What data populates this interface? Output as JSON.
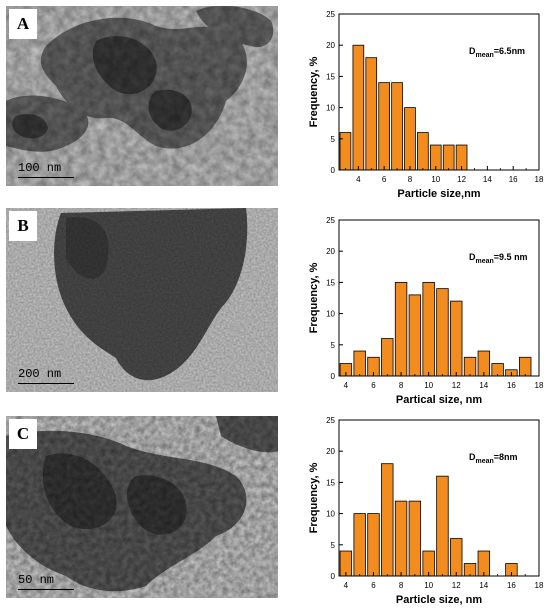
{
  "panels": [
    {
      "label": "A",
      "scale_bar": "100 nm",
      "chart_data": {
        "type": "bar",
        "x": [
          3,
          4,
          5,
          6,
          7,
          8,
          9,
          10,
          11,
          12
        ],
        "values": [
          6,
          20,
          18,
          14,
          14,
          10,
          6,
          4,
          4,
          4
        ],
        "xlabel": "Particle size,nm",
        "ylabel": "Frequency, %",
        "annotation": {
          "main": "D",
          "sub": "mean",
          "tail": "=6.5nm"
        },
        "xlim": [
          2.5,
          18
        ],
        "ylim": [
          0,
          25
        ],
        "xticks": [
          4,
          6,
          8,
          10,
          12,
          14,
          16,
          18
        ],
        "yticks": [
          0,
          5,
          10,
          15,
          20,
          25
        ],
        "bar_color": "#F28C1E"
      }
    },
    {
      "label": "B",
      "scale_bar": "200 nm",
      "chart_data": {
        "type": "bar",
        "x": [
          4,
          5,
          6,
          7,
          8,
          9,
          10,
          11,
          12,
          13,
          14,
          15,
          16,
          17
        ],
        "values": [
          2,
          4,
          3,
          6,
          15,
          13,
          15,
          14,
          12,
          3,
          4,
          2,
          1,
          3
        ],
        "xlabel": "Partical size, nm",
        "ylabel": "Frequency, %",
        "annotation": {
          "main": "D",
          "sub": "mean",
          "tail": "=9.5 nm"
        },
        "xlim": [
          3.5,
          18
        ],
        "ylim": [
          0,
          25
        ],
        "xticks": [
          4,
          6,
          8,
          10,
          12,
          14,
          16,
          18
        ],
        "yticks": [
          0,
          5,
          10,
          15,
          20,
          25
        ],
        "bar_color": "#F28C1E"
      }
    },
    {
      "label": "C",
      "scale_bar": "50 nm",
      "chart_data": {
        "type": "bar",
        "x": [
          4,
          5,
          6,
          7,
          8,
          9,
          10,
          11,
          12,
          13,
          14,
          15,
          16
        ],
        "values": [
          4,
          10,
          10,
          18,
          12,
          12,
          4,
          16,
          6,
          2,
          4,
          0,
          2
        ],
        "xlabel": "Particle size, nm",
        "ylabel": "Frequency, %",
        "annotation": {
          "main": "D",
          "sub": "mean",
          "tail": "=8nm"
        },
        "xlim": [
          3.5,
          18
        ],
        "ylim": [
          0,
          25
        ],
        "xticks": [
          4,
          6,
          8,
          10,
          12,
          14,
          16,
          18
        ],
        "yticks": [
          0,
          5,
          10,
          15,
          20,
          25
        ],
        "bar_color": "#F28C1E"
      }
    }
  ]
}
